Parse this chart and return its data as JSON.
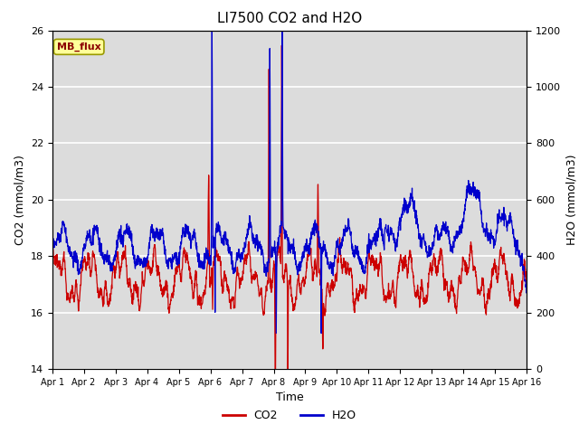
{
  "title": "LI7500 CO2 and H2O",
  "xlabel": "Time",
  "ylabel_left": "CO2 (mmol/m3)",
  "ylabel_right": "H2O (mmol/m3)",
  "ylim_left": [
    14,
    26
  ],
  "ylim_right": [
    0,
    1200
  ],
  "yticks_left": [
    14,
    16,
    18,
    20,
    22,
    24,
    26
  ],
  "yticks_right": [
    0,
    200,
    400,
    600,
    800,
    1000,
    1200
  ],
  "xtick_labels": [
    "Apr 1",
    "Apr 2",
    "Apr 3",
    "Apr 4",
    "Apr 5",
    "Apr 6",
    "Apr 7",
    "Apr 8",
    "Apr 9",
    "Apr 10",
    "Apr 11",
    "Apr 12",
    "Apr 13",
    "Apr 14",
    "Apr 15",
    "Apr 16"
  ],
  "plot_bg_color": "#dcdcdc",
  "co2_color": "#cc0000",
  "h2o_color": "#0000cc",
  "annotation_text": "MB_flux",
  "annotation_bg": "#ffff99",
  "annotation_border": "#999900",
  "grid_color": "#ffffff",
  "title_fontsize": 11,
  "label_fontsize": 9,
  "tick_fontsize": 8,
  "legend_fontsize": 9,
  "linewidth": 0.9
}
